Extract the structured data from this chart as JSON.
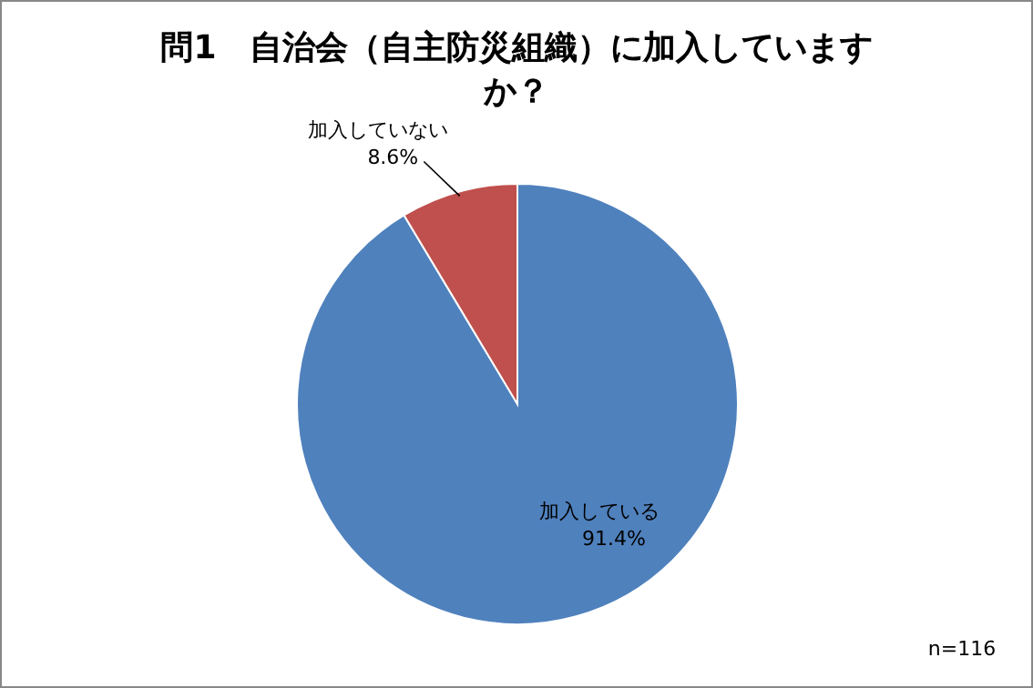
{
  "chart_data": {
    "type": "pie",
    "title": "問1　自治会（自主防災組織）に加入していますか？",
    "categories": [
      "加入している",
      "加入していない"
    ],
    "values": [
      91.4,
      8.6
    ],
    "value_labels": [
      "91.4%",
      "8.6%"
    ],
    "colors": [
      "#4f81bd",
      "#c0504d"
    ],
    "annotations": [
      "n=116"
    ]
  }
}
